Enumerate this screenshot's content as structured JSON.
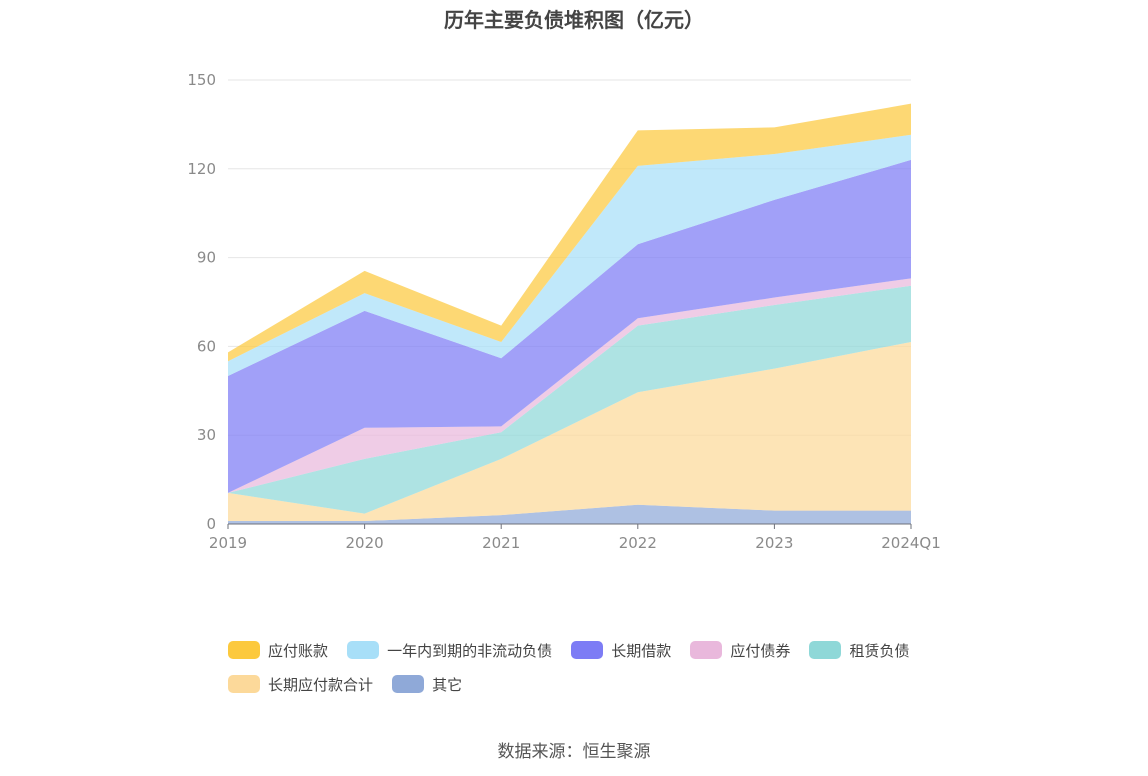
{
  "title": "历年主要负债堆积图（亿元）",
  "source": "数据来源：恒生聚源",
  "chart_data": {
    "type": "area",
    "stacked": true,
    "title": "历年主要负债堆积图（亿元）",
    "categories": [
      "2019",
      "2020",
      "2021",
      "2022",
      "2023",
      "2024Q1"
    ],
    "ylim": [
      0,
      150
    ],
    "yticks": [
      0,
      30,
      60,
      90,
      120,
      150
    ],
    "grid": true,
    "legend_position": "bottom",
    "series": [
      {
        "name": "其它",
        "color": "#8fa9d8",
        "values": [
          1.0,
          1.0,
          3.0,
          6.5,
          4.5,
          4.5
        ]
      },
      {
        "name": "长期应付款合计",
        "color": "#fcd99a",
        "values": [
          9.5,
          2.5,
          19.0,
          38.0,
          48.0,
          57.0
        ]
      },
      {
        "name": "租赁负债",
        "color": "#8fd8d8",
        "values": [
          0.0,
          18.5,
          9.0,
          22.5,
          21.5,
          19.0
        ]
      },
      {
        "name": "应付债券",
        "color": "#e9b8dc",
        "values": [
          0.0,
          10.5,
          2.0,
          2.5,
          2.5,
          2.5
        ]
      },
      {
        "name": "长期借款",
        "color": "#7d7cf5",
        "values": [
          39.5,
          39.5,
          23.0,
          25.0,
          33.0,
          40.0
        ]
      },
      {
        "name": "一年内到期的非流动负债",
        "color": "#a8dff8",
        "values": [
          5.0,
          6.0,
          5.5,
          26.5,
          15.5,
          8.5
        ]
      },
      {
        "name": "应付账款",
        "color": "#fcc93e",
        "values": [
          3.0,
          7.5,
          5.5,
          12.0,
          9.0,
          10.5
        ]
      }
    ]
  },
  "legend": [
    {
      "label": "应付账款",
      "color": "#fcc93e"
    },
    {
      "label": "一年内到期的非流动负债",
      "color": "#a8dff8"
    },
    {
      "label": "长期借款",
      "color": "#7d7cf5"
    },
    {
      "label": "应付债券",
      "color": "#e9b8dc"
    },
    {
      "label": "租赁负债",
      "color": "#8fd8d8"
    },
    {
      "label": "长期应付款合计",
      "color": "#fcd99a"
    },
    {
      "label": "其它",
      "color": "#8fa9d8"
    }
  ]
}
